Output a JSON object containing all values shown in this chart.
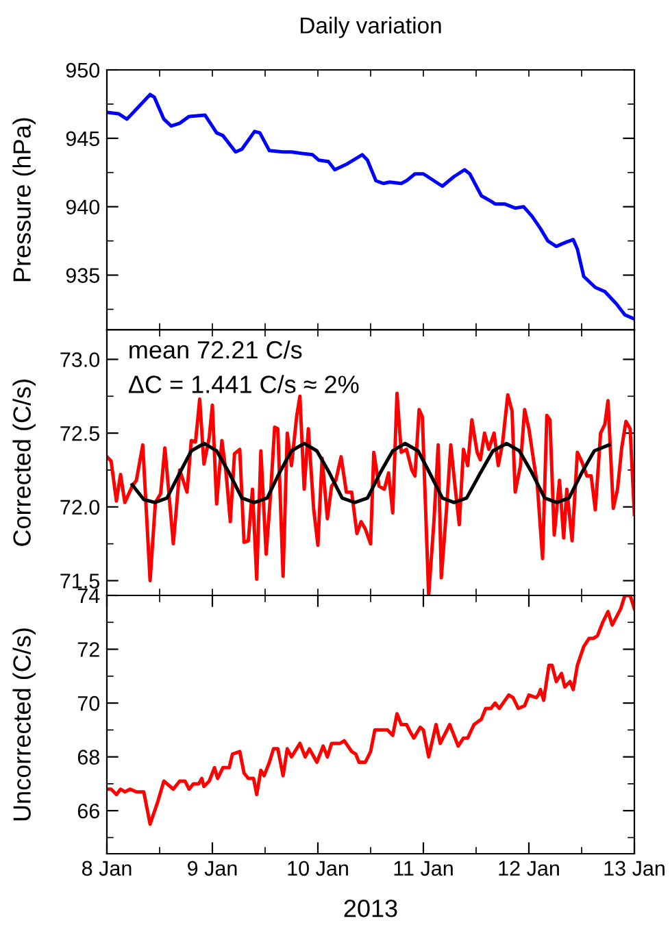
{
  "chart_data": [
    {
      "type": "line",
      "title": "Daily variation",
      "ylabel": "Pressure (hPa)",
      "xlim": [
        "2013-01-08",
        "2013-01-13"
      ],
      "xticks": [
        {
          "value": "2013-01-08",
          "label": null
        },
        {
          "value": "2013-01-08T12:00",
          "label": null
        },
        {
          "value": "2013-01-09",
          "label": null
        },
        {
          "value": "2013-01-09T12:00",
          "label": null
        },
        {
          "value": "2013-01-10",
          "label": null
        },
        {
          "value": "2013-01-10T12:00",
          "label": null
        },
        {
          "value": "2013-01-11",
          "label": null
        },
        {
          "value": "2013-01-11T12:00",
          "label": null
        },
        {
          "value": "2013-01-12",
          "label": null
        },
        {
          "value": "2013-01-12T12:00",
          "label": null
        },
        {
          "value": "2013-01-13",
          "label": null
        }
      ],
      "ylim": [
        931,
        950
      ],
      "yticks": [
        {
          "value": 932.5,
          "label": null
        },
        935,
        {
          "value": 937.5,
          "label": null
        },
        940,
        {
          "value": 942.5,
          "label": null
        },
        945,
        {
          "value": 947.5,
          "label": null
        },
        950
      ],
      "tick_labels": "y",
      "grid": false,
      "marker": "none",
      "line_style": "solid",
      "series": [
        {
          "color": "#0000ff",
          "x": [
            "2013-01-08T00:00",
            "2013-01-08T02:38",
            "2013-01-08T04:34",
            "2013-01-08T07:12",
            "2013-01-08T09:50",
            "2013-01-08T10:48",
            "2013-01-08T12:58",
            "2013-01-08T14:38",
            "2013-01-08T16:34",
            "2013-01-08T18:43",
            "2013-01-08T22:19",
            "2013-01-09T00:58",
            "2013-01-09T02:24",
            "2013-01-09T05:17",
            "2013-01-09T06:43",
            "2013-01-09T09:36",
            "2013-01-09T10:48",
            "2013-01-09T12:58",
            "2013-01-09T16:05",
            "2013-01-09T18:00",
            "2013-01-09T20:10",
            "2013-01-09T22:48",
            "2013-01-10T00:14",
            "2013-01-10T02:24",
            "2013-01-10T03:50",
            "2013-01-10T06:29",
            "2013-01-10T10:05",
            "2013-01-10T11:17",
            "2013-01-10T13:12",
            "2013-01-10T14:53",
            "2013-01-10T16:19",
            "2013-01-10T18:58",
            "2013-01-10T20:10",
            "2013-01-10T22:05",
            "2013-01-11T00:00",
            "2013-01-11T02:24",
            "2013-01-11T04:19",
            "2013-01-11T06:58",
            "2013-01-11T09:22",
            "2013-01-11T10:34",
            "2013-01-11T13:12",
            "2013-01-11T15:22",
            "2013-01-11T16:19",
            "2013-01-11T18:29",
            "2013-01-11T20:53",
            "2013-01-11T22:48",
            "2013-01-12T00:43",
            "2013-01-12T02:38",
            "2013-01-12T04:19",
            "2013-01-12T06:14",
            "2013-01-12T08:24",
            "2013-01-12T10:05",
            "2013-01-12T11:02",
            "2013-01-12T12:29",
            "2013-01-12T15:07",
            "2013-01-12T17:17",
            "2013-01-12T19:55",
            "2013-01-12T21:50",
            "2013-01-13T00:00"
          ],
          "values": [
            946.9,
            946.8,
            946.4,
            947.3,
            948.2,
            948.0,
            946.4,
            945.9,
            946.1,
            946.6,
            946.7,
            945.4,
            945.2,
            944.0,
            944.2,
            945.5,
            945.4,
            944.1,
            944.0,
            944.0,
            943.9,
            943.8,
            943.4,
            943.3,
            942.7,
            943.1,
            943.8,
            943.4,
            941.9,
            941.7,
            941.8,
            941.7,
            941.9,
            942.4,
            942.4,
            941.9,
            941.5,
            942.2,
            942.7,
            942.4,
            940.8,
            940.4,
            940.2,
            940.2,
            939.9,
            940.0,
            939.3,
            938.4,
            937.5,
            937.1,
            937.4,
            937.6,
            936.9,
            934.9,
            934.1,
            933.8,
            932.9,
            932.1,
            931.8
          ]
        }
      ]
    },
    {
      "type": "line",
      "ylabel": "Corrected (C/s)",
      "annotations": [
        "mean 72.21 C/s",
        "ΔC = 1.441 C/s ≈ 2%"
      ],
      "xlim": [
        "2013-01-08",
        "2013-01-13"
      ],
      "xticks": [
        {
          "value": "2013-01-08",
          "label": null
        },
        {
          "value": "2013-01-08T12:00",
          "label": null
        },
        {
          "value": "2013-01-09",
          "label": null
        },
        {
          "value": "2013-01-09T12:00",
          "label": null
        },
        {
          "value": "2013-01-10",
          "label": null
        },
        {
          "value": "2013-01-10T12:00",
          "label": null
        },
        {
          "value": "2013-01-11",
          "label": null
        },
        {
          "value": "2013-01-11T12:00",
          "label": null
        },
        {
          "value": "2013-01-12",
          "label": null
        },
        {
          "value": "2013-01-12T12:00",
          "label": null
        },
        {
          "value": "2013-01-13",
          "label": null
        }
      ],
      "ylim": [
        71.4,
        73.2
      ],
      "yticks": [
        71.5,
        {
          "value": 71.75,
          "label": null
        },
        {
          "value": 72,
          "label": "72.0"
        },
        {
          "value": 72.25,
          "label": null
        },
        72.5,
        {
          "value": 72.75,
          "label": null
        },
        {
          "value": 73,
          "label": "73.0"
        }
      ],
      "tick_labels": "y",
      "grid": false,
      "marker": "none",
      "line_style": "solid",
      "series": [
        {
          "color": "#ff0000",
          "x": [
            "2013-01-08T00:00",
            "2013-01-08T00:58",
            "2013-01-08T02:10",
            "2013-01-08T03:07",
            "2013-01-08T04:05",
            "2013-01-08T05:46",
            "2013-01-08T06:43",
            "2013-01-08T08:10",
            "2013-01-08T09:50",
            "2013-01-08T11:02",
            "2013-01-08T12:14",
            "2013-01-08T13:12",
            "2013-01-08T15:07",
            "2013-01-08T16:34",
            "2013-01-08T18:14",
            "2013-01-08T19:12",
            "2013-01-08T20:10",
            "2013-01-08T21:07",
            "2013-01-08T22:05",
            "2013-01-08T23:17",
            "2013-01-09T00:00",
            "2013-01-09T00:58",
            "2013-01-09T02:10",
            "2013-01-09T03:07",
            "2013-01-09T04:05",
            "2013-01-09T05:02",
            "2013-01-09T06:14",
            "2013-01-09T07:12",
            "2013-01-09T08:10",
            "2013-01-09T09:07",
            "2013-01-09T10:05",
            "2013-01-09T11:02",
            "2013-01-09T12:14",
            "2013-01-09T13:12",
            "2013-01-09T14:10",
            "2013-01-09T14:53",
            "2013-01-09T16:05",
            "2013-01-09T17:02",
            "2013-01-09T18:00",
            "2013-01-09T19:12",
            "2013-01-09T19:55",
            "2013-01-09T20:53",
            "2013-01-09T21:50",
            "2013-01-09T23:02",
            "2013-01-10T00:00",
            "2013-01-10T00:58",
            "2013-01-10T02:10",
            "2013-01-10T03:07",
            "2013-01-10T04:05",
            "2013-01-10T05:17",
            "2013-01-10T06:29",
            "2013-01-10T07:41",
            "2013-01-10T08:53",
            "2013-01-10T09:50",
            "2013-01-10T10:48",
            "2013-01-10T12:00",
            "2013-01-10T12:43",
            "2013-01-10T13:55",
            "2013-01-10T15:07",
            "2013-01-10T16:05",
            "2013-01-10T17:02",
            "2013-01-10T18:00",
            "2013-01-10T18:58",
            "2013-01-10T20:10",
            "2013-01-10T21:22",
            "2013-01-10T22:05",
            "2013-01-10T23:02",
            "2013-01-10T23:46",
            "2013-01-11T01:12",
            "2013-01-11T02:24",
            "2013-01-11T03:22",
            "2013-01-11T04:05",
            "2013-01-11T05:17",
            "2013-01-11T06:14",
            "2013-01-11T07:12",
            "2013-01-11T08:10",
            "2013-01-11T09:07",
            "2013-01-11T10:05",
            "2013-01-11T11:02",
            "2013-01-11T12:14",
            "2013-01-11T12:58",
            "2013-01-11T13:55",
            "2013-01-11T14:53",
            "2013-01-11T16:05",
            "2013-01-11T17:02",
            "2013-01-11T18:00",
            "2013-01-11T19:12",
            "2013-01-11T20:10",
            "2013-01-11T20:53",
            "2013-01-11T22:05",
            "2013-01-11T23:02",
            "2013-01-12T00:00",
            "2013-01-12T01:12",
            "2013-01-12T01:55",
            "2013-01-12T03:07",
            "2013-01-12T04:05",
            "2013-01-12T04:48",
            "2013-01-12T05:46",
            "2013-01-12T06:58",
            "2013-01-12T07:55",
            "2013-01-12T08:38",
            "2013-01-12T09:50",
            "2013-01-12T11:02",
            "2013-01-12T12:00",
            "2013-01-12T13:12",
            "2013-01-12T14:10",
            "2013-01-12T15:07",
            "2013-01-12T16:19",
            "2013-01-12T17:17",
            "2013-01-12T18:00",
            "2013-01-12T19:12",
            "2013-01-12T20:10",
            "2013-01-12T21:07",
            "2013-01-12T22:05",
            "2013-01-12T23:02",
            "2013-01-13T00:00"
          ],
          "values": [
            72.34,
            72.31,
            72.04,
            72.22,
            72.03,
            72.14,
            72.18,
            72.42,
            71.5,
            72.03,
            72.09,
            72.4,
            71.75,
            72.25,
            72.1,
            72.45,
            72.44,
            72.73,
            72.29,
            72.47,
            72.69,
            72.02,
            72.45,
            72.23,
            71.9,
            72.36,
            72.39,
            71.76,
            71.77,
            72.12,
            71.51,
            72.38,
            71.68,
            72.07,
            72.54,
            72.53,
            71.53,
            72.5,
            72.28,
            72.62,
            72.75,
            72.12,
            72.53,
            71.99,
            71.74,
            72.33,
            71.92,
            72.14,
            72.18,
            72.34,
            72.1,
            72.1,
            71.82,
            71.9,
            71.85,
            71.75,
            72.37,
            72.14,
            72.12,
            72.23,
            71.96,
            72.77,
            72.37,
            72.39,
            72.25,
            72.21,
            72.66,
            72.61,
            71.4,
            71.9,
            72.42,
            71.52,
            71.99,
            72.42,
            72.14,
            71.88,
            72.39,
            72.28,
            72.59,
            72.37,
            72.32,
            72.5,
            72.39,
            72.5,
            72.28,
            72.43,
            72.76,
            72.65,
            72.1,
            72.28,
            72.66,
            72.53,
            72.29,
            72.15,
            71.65,
            72.62,
            72.59,
            71.81,
            72.18,
            71.79,
            72.12,
            71.77,
            72.37,
            72.31,
            72.21,
            72.21,
            71.98,
            72.5,
            72.56,
            72.72,
            71.99,
            72.12,
            72.4,
            72.58,
            72.53,
            71.95
          ]
        },
        {
          "type": "line",
          "color": "#000000",
          "x": [
            "2013-01-08T05:46",
            "2013-01-08T08:24",
            "2013-01-08T10:55",
            "2013-01-08T13:41",
            "2013-01-08T16:34",
            "2013-01-08T19:12",
            "2013-01-08T22:08",
            "2013-01-09T00:58",
            "2013-01-09T03:50",
            "2013-01-09T06:43",
            "2013-01-09T09:33",
            "2013-01-09T12:29",
            "2013-01-09T15:14",
            "2013-01-09T18:00",
            "2013-01-09T20:53",
            "2013-01-09T23:46",
            "2013-01-10T02:38",
            "2013-01-10T05:31",
            "2013-01-10T08:24",
            "2013-01-10T11:17",
            "2013-01-10T14:10",
            "2013-01-10T17:02",
            "2013-01-10T19:51",
            "2013-01-10T22:48",
            "2013-01-11T01:26",
            "2013-01-11T04:19",
            "2013-01-11T06:58",
            "2013-01-11T09:50",
            "2013-01-11T12:58",
            "2013-01-11T15:50",
            "2013-01-11T18:55",
            "2013-01-11T21:50",
            "2013-01-12T00:43",
            "2013-01-12T03:36",
            "2013-01-12T06:20",
            "2013-01-12T09:07",
            "2013-01-12T12:00",
            "2013-01-12T14:53",
            "2013-01-12T18:14"
          ],
          "values": [
            72.15,
            72.05,
            72.03,
            72.06,
            72.23,
            72.38,
            72.43,
            72.38,
            72.23,
            72.06,
            72.03,
            72.06,
            72.23,
            72.38,
            72.43,
            72.38,
            72.23,
            72.06,
            72.03,
            72.06,
            72.23,
            72.38,
            72.43,
            72.38,
            72.23,
            72.06,
            72.03,
            72.06,
            72.23,
            72.38,
            72.43,
            72.38,
            72.23,
            72.06,
            72.03,
            72.06,
            72.23,
            72.38,
            72.42
          ]
        }
      ]
    },
    {
      "type": "line",
      "xlabel": "2013",
      "ylabel": "Uncorrected (C/s)",
      "xlim": [
        "2013-01-08",
        "2013-01-13"
      ],
      "xticks": [
        {
          "value": "2013-01-08",
          "label": "8 Jan"
        },
        {
          "value": "2013-01-08T12:00",
          "label": null
        },
        {
          "value": "2013-01-09",
          "label": "9 Jan"
        },
        {
          "value": "2013-01-09T12:00",
          "label": null
        },
        {
          "value": "2013-01-10",
          "label": "10 Jan"
        },
        {
          "value": "2013-01-10T12:00",
          "label": null
        },
        {
          "value": "2013-01-11",
          "label": "11 Jan"
        },
        {
          "value": "2013-01-11T12:00",
          "label": null
        },
        {
          "value": "2013-01-12",
          "label": "12 Jan"
        },
        {
          "value": "2013-01-12T12:00",
          "label": null
        },
        {
          "value": "2013-01-13",
          "label": "13 Jan"
        }
      ],
      "ylim": [
        64.4,
        74
      ],
      "yticks": [
        {
          "value": 65,
          "label": null
        },
        66,
        {
          "value": 67,
          "label": null
        },
        68,
        {
          "value": 69,
          "label": null
        },
        70,
        {
          "value": 71,
          "label": null
        },
        72,
        {
          "value": 73,
          "label": null
        },
        74
      ],
      "grid": false,
      "marker": "none",
      "line_style": "solid",
      "series": [
        {
          "color": "#ff0000",
          "x": [
            "2013-01-08T00:00",
            "2013-01-08T00:58",
            "2013-01-08T02:10",
            "2013-01-08T03:07",
            "2013-01-08T04:05",
            "2013-01-08T05:17",
            "2013-01-08T06:43",
            "2013-01-08T07:41",
            "2013-01-08T08:24",
            "2013-01-08T09:50",
            "2013-01-08T11:31",
            "2013-01-08T12:58",
            "2013-01-08T15:07",
            "2013-01-08T16:34",
            "2013-01-08T17:46",
            "2013-01-08T18:43",
            "2013-01-08T19:41",
            "2013-01-08T20:53",
            "2013-01-08T21:36",
            "2013-01-08T22:05",
            "2013-01-08T23:17",
            "2013-01-09T00:29",
            "2013-01-09T01:12",
            "2013-01-09T02:24",
            "2013-01-09T03:50",
            "2013-01-09T04:34",
            "2013-01-09T06:14",
            "2013-01-09T07:12",
            "2013-01-09T08:10",
            "2013-01-09T09:22",
            "2013-01-09T10:05",
            "2013-01-09T11:02",
            "2013-01-09T11:46",
            "2013-01-09T12:58",
            "2013-01-09T13:55",
            "2013-01-09T14:53",
            "2013-01-09T16:05",
            "2013-01-09T17:02",
            "2013-01-09T18:00",
            "2013-01-09T19:55",
            "2013-01-09T21:07",
            "2013-01-09T22:05",
            "2013-01-09T23:46",
            "2013-01-10T01:12",
            "2013-01-10T02:10",
            "2013-01-10T03:07",
            "2013-01-10T05:02",
            "2013-01-10T06:00",
            "2013-01-10T07:41",
            "2013-01-10T08:38",
            "2013-01-10T09:22",
            "2013-01-10T10:48",
            "2013-01-10T12:00",
            "2013-01-10T12:58",
            "2013-01-10T14:53",
            "2013-01-10T15:50",
            "2013-01-10T17:02",
            "2013-01-10T18:00",
            "2013-01-10T18:58",
            "2013-01-10T20:10",
            "2013-01-10T21:07",
            "2013-01-10T21:50",
            "2013-01-10T23:17",
            "2013-01-11T00:00",
            "2013-01-11T01:12",
            "2013-01-11T02:53",
            "2013-01-11T03:50",
            "2013-01-11T06:00",
            "2013-01-11T07:55",
            "2013-01-11T09:07",
            "2013-01-11T10:05",
            "2013-01-11T11:31",
            "2013-01-11T13:12",
            "2013-01-11T14:10",
            "2013-01-11T15:22",
            "2013-01-11T16:19",
            "2013-01-11T17:17",
            "2013-01-11T19:26",
            "2013-01-11T20:24",
            "2013-01-11T21:36",
            "2013-01-11T23:02",
            "2013-01-12T00:00",
            "2013-01-12T01:41",
            "2013-01-12T02:10",
            "2013-01-12T02:38",
            "2013-01-12T03:22",
            "2013-01-12T04:34",
            "2013-01-12T05:17",
            "2013-01-12T06:14",
            "2013-01-12T07:26",
            "2013-01-12T08:10",
            "2013-01-12T09:22",
            "2013-01-12T10:05",
            "2013-01-12T11:02",
            "2013-01-12T12:29",
            "2013-01-12T13:41",
            "2013-01-12T14:38",
            "2013-01-12T15:36",
            "2013-01-12T16:48",
            "2013-01-12T18:00",
            "2013-01-12T18:58",
            "2013-01-12T20:53",
            "2013-01-12T21:50",
            "2013-01-12T23:02",
            "2013-01-13T00:00"
          ],
          "values": [
            66.8,
            66.8,
            66.6,
            66.8,
            66.7,
            66.8,
            66.7,
            66.7,
            66.7,
            65.5,
            66.3,
            67.1,
            66.8,
            67.1,
            67.1,
            66.8,
            67.0,
            67.0,
            67.2,
            66.9,
            67.1,
            67.6,
            67.2,
            67.6,
            67.6,
            68.1,
            68.2,
            67.4,
            67.2,
            67.2,
            66.6,
            67.5,
            67.3,
            67.8,
            68.3,
            68.3,
            67.3,
            68.3,
            68.0,
            68.5,
            68.0,
            68.3,
            67.8,
            68.4,
            68.0,
            68.5,
            68.5,
            68.6,
            68.2,
            68.1,
            67.8,
            67.8,
            68.2,
            69.0,
            69.0,
            69.0,
            68.8,
            69.6,
            69.2,
            69.2,
            68.9,
            68.7,
            69.1,
            69.0,
            68.0,
            69.2,
            68.5,
            69.2,
            68.4,
            68.7,
            68.7,
            69.2,
            69.4,
            69.8,
            69.8,
            70.0,
            69.8,
            70.3,
            70.2,
            69.8,
            69.9,
            70.3,
            70.2,
            70.3,
            70.5,
            70.1,
            71.4,
            71.4,
            70.8,
            71.1,
            70.6,
            70.8,
            70.5,
            71.4,
            72.1,
            72.4,
            72.4,
            72.5,
            73.0,
            73.4,
            72.9,
            73.5,
            74.0,
            74.0,
            73.5
          ]
        }
      ]
    }
  ]
}
